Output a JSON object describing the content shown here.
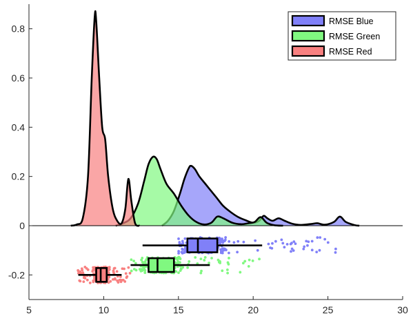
{
  "chart_data": {
    "type": "raincloud",
    "title": "",
    "xlabel": "",
    "ylabel": "",
    "xlim": [
      5,
      30
    ],
    "ylim": [
      -0.3,
      0.9
    ],
    "xticks": [
      5,
      10,
      15,
      20,
      25,
      30
    ],
    "yticks": [
      -0.2,
      0,
      0.2,
      0.4,
      0.6,
      0.8
    ],
    "ytick_labels": [
      "-0.2",
      "0",
      "0.2",
      "0.4",
      "0.6",
      "0.8"
    ],
    "legend": {
      "position": "top-right"
    },
    "series": [
      {
        "name": "RMSE Blue",
        "color": "#8080f8",
        "density": [
          [
            13.9,
            0
          ],
          [
            14.3,
            0.02
          ],
          [
            14.7,
            0.06
          ],
          [
            15.1,
            0.13
          ],
          [
            15.4,
            0.19
          ],
          [
            15.7,
            0.235
          ],
          [
            15.85,
            0.243
          ],
          [
            16.1,
            0.23
          ],
          [
            16.4,
            0.2
          ],
          [
            16.8,
            0.17
          ],
          [
            17.2,
            0.14
          ],
          [
            17.6,
            0.11
          ],
          [
            18.0,
            0.08
          ],
          [
            18.5,
            0.055
          ],
          [
            19.0,
            0.035
          ],
          [
            19.5,
            0.022
          ],
          [
            20.0,
            0.012
          ],
          [
            20.4,
            0.02
          ],
          [
            20.7,
            0.04
          ],
          [
            20.95,
            0.03
          ],
          [
            21.3,
            0.02
          ],
          [
            21.7,
            0.03
          ],
          [
            22.1,
            0.02
          ],
          [
            22.6,
            0.008
          ],
          [
            23.2,
            0.003
          ],
          [
            24.0,
            0.008
          ],
          [
            24.3,
            0.01
          ],
          [
            24.8,
            0.004
          ],
          [
            25.4,
            0.015
          ],
          [
            25.8,
            0.037
          ],
          [
            26.2,
            0.015
          ],
          [
            26.8,
            0.002
          ],
          [
            27.1,
            0
          ]
        ],
        "box": {
          "whisker_low": 12.6,
          "q1": 15.6,
          "median": 16.3,
          "q3": 17.6,
          "whisker_high": 20.6
        },
        "jitter_center": -0.08,
        "points_range": [
          15.0,
          26.0
        ],
        "point_count": 200
      },
      {
        "name": "RMSE Green",
        "color": "#80f880",
        "density": [
          [
            10.8,
            0
          ],
          [
            11.3,
            0.01
          ],
          [
            11.8,
            0.03
          ],
          [
            12.3,
            0.09
          ],
          [
            12.7,
            0.18
          ],
          [
            13.0,
            0.25
          ],
          [
            13.3,
            0.28
          ],
          [
            13.55,
            0.27
          ],
          [
            13.8,
            0.23
          ],
          [
            14.2,
            0.17
          ],
          [
            14.7,
            0.13
          ],
          [
            15.2,
            0.08
          ],
          [
            15.7,
            0.04
          ],
          [
            16.2,
            0.015
          ],
          [
            16.7,
            0.005
          ],
          [
            17.2,
            0.012
          ],
          [
            17.6,
            0.037
          ],
          [
            18.0,
            0.03
          ],
          [
            18.6,
            0.012
          ],
          [
            19.2,
            0.006
          ],
          [
            19.7,
            0.01
          ],
          [
            20.1,
            0.015
          ],
          [
            20.5,
            0.035
          ],
          [
            20.9,
            0.012
          ],
          [
            21.4,
            0.002
          ],
          [
            22.0,
            0
          ]
        ],
        "box": {
          "whisker_low": 11.8,
          "q1": 13.0,
          "median": 13.6,
          "q3": 14.7,
          "whisker_high": 17.1
        },
        "jitter_center": -0.16,
        "points_range": [
          11.5,
          20.8
        ],
        "point_count": 200
      },
      {
        "name": "RMSE Red",
        "color": "#f88080",
        "density": [
          [
            7.8,
            0
          ],
          [
            8.2,
            0.005
          ],
          [
            8.6,
            0.03
          ],
          [
            8.95,
            0.2
          ],
          [
            9.2,
            0.6
          ],
          [
            9.4,
            0.85
          ],
          [
            9.5,
            0.83
          ],
          [
            9.7,
            0.6
          ],
          [
            9.9,
            0.4
          ],
          [
            10.1,
            0.35
          ],
          [
            10.3,
            0.2
          ],
          [
            10.6,
            0.07
          ],
          [
            10.9,
            0.02
          ],
          [
            11.2,
            0.01
          ],
          [
            11.45,
            0.07
          ],
          [
            11.65,
            0.19
          ],
          [
            11.85,
            0.1
          ],
          [
            12.1,
            0.01
          ],
          [
            12.4,
            0
          ]
        ],
        "box": {
          "whisker_low": 8.3,
          "q1": 9.5,
          "median": 9.8,
          "q3": 10.2,
          "whisker_high": 11.2
        },
        "jitter_center": -0.2,
        "points_range": [
          8.2,
          11.8
        ],
        "point_count": 200
      }
    ]
  }
}
